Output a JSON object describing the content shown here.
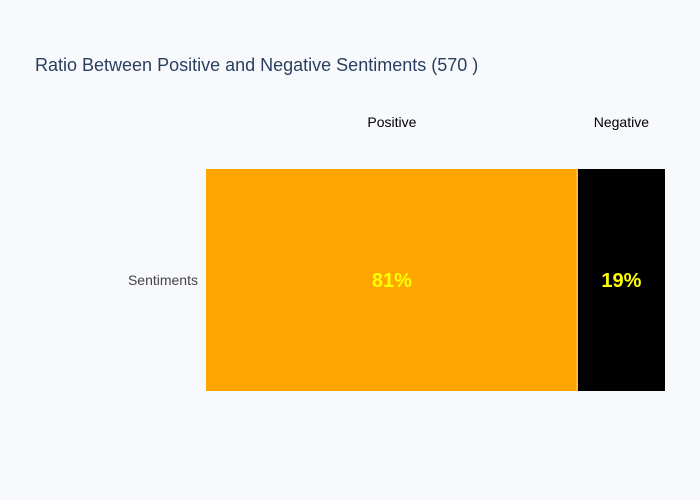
{
  "chart_data": {
    "type": "bar",
    "orientation": "horizontal",
    "barmode": "stack",
    "title": "Ratio Between Positive and Negative Sentiments (570 )",
    "categories": [
      "Sentiments"
    ],
    "series": [
      {
        "name": "Positive",
        "values": [
          81
        ],
        "label": "81%",
        "color": "#ffa500",
        "label_color": "#ffff00"
      },
      {
        "name": "Negative",
        "values": [
          19
        ],
        "label": "19%",
        "color": "#000000",
        "label_color": "#ffff00"
      }
    ],
    "xlim": [
      0,
      100
    ],
    "grid": false
  },
  "colors": {
    "background": "#f7f9fd",
    "title": "#2a3f5f",
    "axis_text": "#444444"
  }
}
